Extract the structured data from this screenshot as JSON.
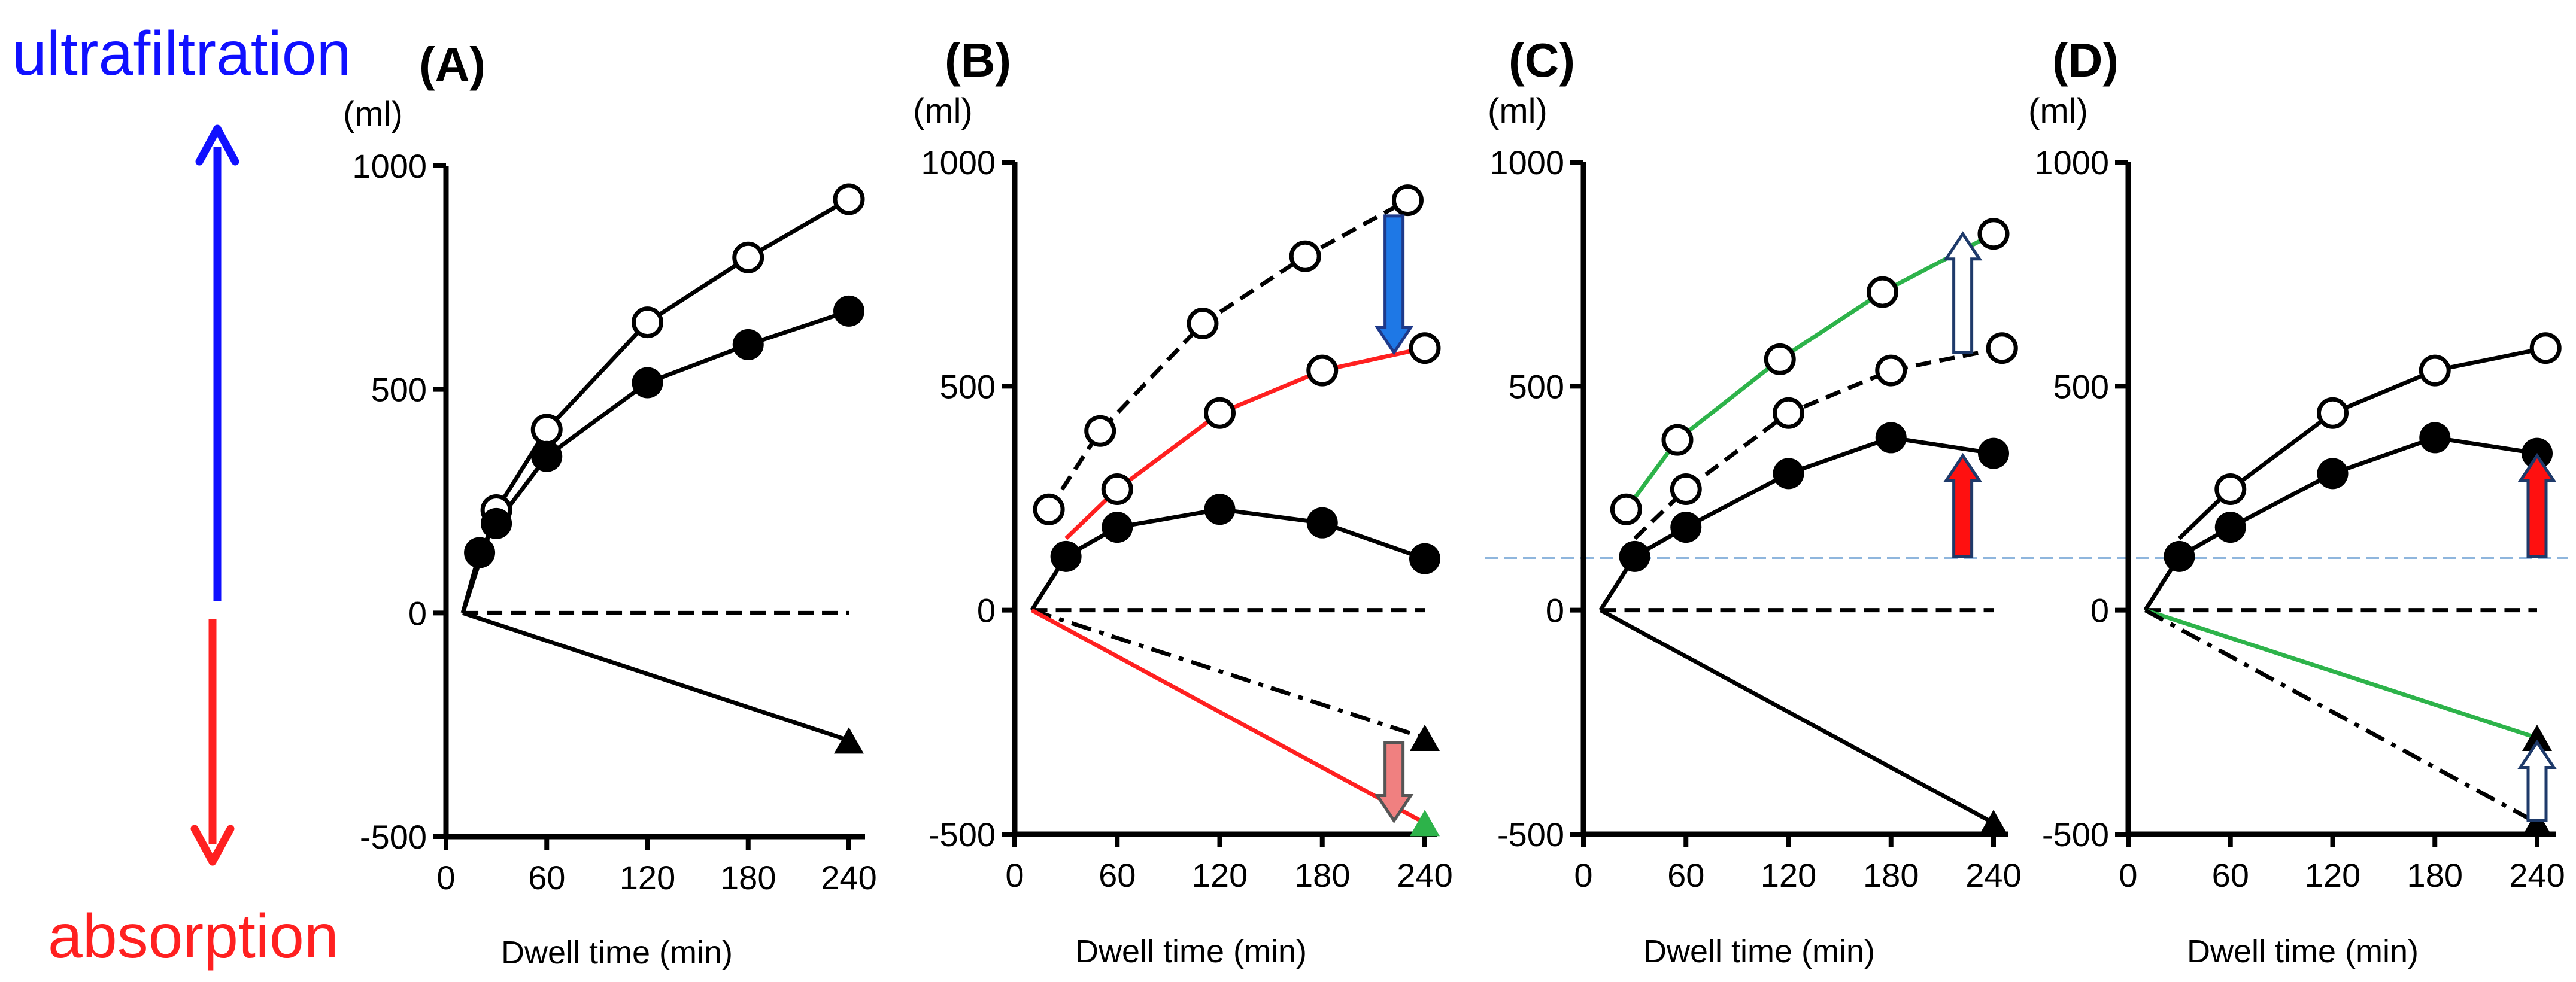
{
  "labels": {
    "ultrafiltration": "ultrafiltration",
    "absorption": "absorption",
    "ultrafiltration_color": "#1010ff",
    "absorption_color": "#ff2020"
  },
  "chart_data": [
    {
      "type": "line",
      "title": "(A)",
      "ylabel": "(ml)",
      "xlabel": "Dwell time (min)",
      "xlim": [
        0,
        255
      ],
      "ylim": [
        -500,
        1000
      ],
      "xticks": [
        0,
        60,
        120,
        180,
        240
      ],
      "yticks": [
        -500,
        0,
        500,
        1000
      ],
      "series": [
        {
          "name": "open circles",
          "marker": "open-circle",
          "color": "#000000",
          "dash": "solid",
          "x": [
            10,
            30,
            60,
            120,
            180,
            240
          ],
          "y": [
            0,
            230,
            410,
            650,
            795,
            925
          ],
          "marked": [
            false,
            true,
            true,
            true,
            true,
            true
          ]
        },
        {
          "name": "filled circles",
          "marker": "filled-circle",
          "color": "#000000",
          "dash": "solid",
          "x": [
            10,
            20,
            30,
            60,
            120,
            180,
            240
          ],
          "y": [
            0,
            135,
            200,
            350,
            515,
            600,
            675
          ],
          "marked": [
            false,
            true,
            true,
            true,
            true,
            true,
            true
          ]
        },
        {
          "name": "zero line",
          "marker": "none",
          "color": "#000000",
          "dash": "dash",
          "x": [
            10,
            240
          ],
          "y": [
            0,
            0
          ],
          "marked": [
            false,
            false
          ]
        },
        {
          "name": "triangle",
          "marker": "filled-triangle",
          "color": "#000000",
          "dash": "solid",
          "x": [
            10,
            240
          ],
          "y": [
            0,
            -285
          ],
          "marked": [
            false,
            true
          ]
        }
      ],
      "arrows": []
    },
    {
      "type": "line",
      "title": "(B)",
      "ylabel": "(ml)",
      "xlabel": "Dwell time (min)",
      "xlim": [
        0,
        255
      ],
      "ylim": [
        -500,
        1000
      ],
      "xticks": [
        0,
        60,
        120,
        180,
        240
      ],
      "yticks": [
        -500,
        0,
        500,
        1000
      ],
      "series": [
        {
          "name": "open circles (dashed)",
          "marker": "open-circle",
          "color": "#000000",
          "dash": "dash",
          "x": [
            20,
            50,
            110,
            170,
            230
          ],
          "y": [
            225,
            400,
            640,
            790,
            915
          ],
          "marked": [
            true,
            true,
            true,
            true,
            true
          ]
        },
        {
          "name": "open circles (red)",
          "marker": "open-circle",
          "color": "#ff2020",
          "dash": "solid",
          "x": [
            30,
            60,
            120,
            180,
            240
          ],
          "y": [
            160,
            270,
            440,
            535,
            585
          ],
          "marked": [
            false,
            true,
            true,
            true,
            true
          ]
        },
        {
          "name": "filled circles",
          "marker": "filled-circle",
          "color": "#000000",
          "dash": "solid",
          "x": [
            10,
            30,
            60,
            120,
            180,
            240
          ],
          "y": [
            0,
            120,
            185,
            225,
            195,
            115
          ],
          "marked": [
            false,
            true,
            true,
            true,
            true,
            true
          ]
        },
        {
          "name": "zero line",
          "marker": "none",
          "color": "#000000",
          "dash": "dash",
          "x": [
            10,
            240
          ],
          "y": [
            0,
            0
          ],
          "marked": [
            false,
            false
          ]
        },
        {
          "name": "triangle (dash-dot)",
          "marker": "filled-triangle",
          "color": "#000000",
          "dash": "dashdot",
          "x": [
            10,
            240
          ],
          "y": [
            0,
            -285
          ],
          "marked": [
            false,
            true
          ]
        },
        {
          "name": "triangle (red)",
          "marker": "green-triangle",
          "color": "#ff2020",
          "dash": "solid",
          "x": [
            10,
            240
          ],
          "y": [
            0,
            -475
          ],
          "marked": [
            false,
            true
          ]
        }
      ],
      "arrows": [
        {
          "x": 222,
          "from": 880,
          "to": 575,
          "fill": "#1e78e6",
          "stroke": "#1e3a8a"
        },
        {
          "x": 222,
          "from": -295,
          "to": -470,
          "fill": "#f08080",
          "stroke": "#555555"
        }
      ]
    },
    {
      "type": "line",
      "title": "(C)",
      "ylabel": "(ml)",
      "xlabel": "Dwell time (min)",
      "xlim": [
        0,
        255
      ],
      "ylim": [
        -500,
        1000
      ],
      "xticks": [
        0,
        60,
        120,
        180,
        240
      ],
      "yticks": [
        -500,
        0,
        500,
        1000
      ],
      "series": [
        {
          "name": "open circles (green)",
          "marker": "open-circle",
          "color": "#2db34a",
          "dash": "solid",
          "x": [
            25,
            55,
            115,
            175,
            240
          ],
          "y": [
            225,
            380,
            560,
            710,
            840
          ],
          "marked": [
            true,
            true,
            true,
            true,
            true
          ]
        },
        {
          "name": "open circles (dashed)",
          "marker": "open-circle",
          "color": "#000000",
          "dash": "dash",
          "x": [
            30,
            60,
            120,
            180,
            245
          ],
          "y": [
            160,
            270,
            440,
            535,
            585
          ],
          "marked": [
            false,
            true,
            true,
            true,
            true
          ]
        },
        {
          "name": "filled circles",
          "marker": "filled-circle",
          "color": "#000000",
          "dash": "solid",
          "x": [
            10,
            30,
            60,
            120,
            180,
            240
          ],
          "y": [
            0,
            120,
            185,
            305,
            385,
            350
          ],
          "marked": [
            false,
            true,
            true,
            true,
            true,
            true
          ]
        },
        {
          "name": "zero line",
          "marker": "none",
          "color": "#000000",
          "dash": "dash",
          "x": [
            10,
            240
          ],
          "y": [
            0,
            0
          ],
          "marked": [
            false,
            false
          ]
        },
        {
          "name": "triangle",
          "marker": "filled-triangle",
          "color": "#000000",
          "dash": "solid",
          "x": [
            10,
            240
          ],
          "y": [
            0,
            -475
          ],
          "marked": [
            false,
            true
          ]
        }
      ],
      "arrows": [
        {
          "x": 222,
          "from": 575,
          "to": 840,
          "fill": "#ffffff",
          "stroke": "#1e3a6a"
        },
        {
          "x": 222,
          "from": 120,
          "to": 345,
          "fill": "#ff1010",
          "stroke": "#1e3a6a"
        }
      ]
    },
    {
      "type": "line",
      "title": "(D)",
      "ylabel": "(ml)",
      "xlabel": "Dwell time (min)",
      "xlim": [
        0,
        255
      ],
      "ylim": [
        -500,
        1000
      ],
      "xticks": [
        0,
        60,
        120,
        180,
        240
      ],
      "yticks": [
        -500,
        0,
        500,
        1000
      ],
      "series": [
        {
          "name": "open circles",
          "marker": "open-circle",
          "color": "#000000",
          "dash": "solid",
          "x": [
            30,
            60,
            120,
            180,
            245
          ],
          "y": [
            160,
            270,
            440,
            535,
            585
          ],
          "marked": [
            false,
            true,
            true,
            true,
            true
          ]
        },
        {
          "name": "filled circles",
          "marker": "filled-circle",
          "color": "#000000",
          "dash": "solid",
          "x": [
            10,
            30,
            60,
            120,
            180,
            240
          ],
          "y": [
            0,
            120,
            185,
            305,
            385,
            350
          ],
          "marked": [
            false,
            true,
            true,
            true,
            true,
            true
          ]
        },
        {
          "name": "zero line",
          "marker": "none",
          "color": "#000000",
          "dash": "dash",
          "x": [
            10,
            240
          ],
          "y": [
            0,
            0
          ],
          "marked": [
            false,
            false
          ]
        },
        {
          "name": "triangle (green)",
          "marker": "filled-triangle",
          "color": "#2db34a",
          "dash": "solid",
          "x": [
            10,
            240
          ],
          "y": [
            0,
            -285
          ],
          "marked": [
            false,
            true
          ]
        },
        {
          "name": "triangle (dash-dot)",
          "marker": "filled-triangle",
          "color": "#000000",
          "dash": "dashdot",
          "x": [
            10,
            240
          ],
          "y": [
            0,
            -475
          ],
          "marked": [
            false,
            true
          ]
        }
      ],
      "arrows": [
        {
          "x": 240,
          "from": 120,
          "to": 345,
          "fill": "#ff1010",
          "stroke": "#1e3a6a"
        },
        {
          "x": 240,
          "from": -470,
          "to": -295,
          "fill": "#ffffff",
          "stroke": "#1e3a6a"
        }
      ]
    }
  ]
}
